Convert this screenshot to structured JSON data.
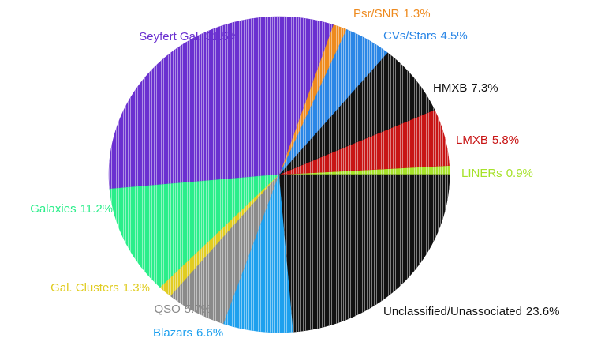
{
  "chart_data": {
    "type": "pie",
    "categories": [
      "LINERs",
      "LMXB",
      "HMXB",
      "CVs/Stars",
      "Psr/SNR",
      "Seyfert Gal.",
      "Galaxies",
      "Gal. Clusters",
      "QSO",
      "Blazars",
      "Unclassified/Unassociated"
    ],
    "values": [
      0.9,
      5.8,
      7.3,
      4.5,
      1.3,
      31.5,
      11.2,
      1.3,
      5.7,
      6.6,
      23.6
    ],
    "value_labels": [
      "0.9%",
      "5.8%",
      "7.3%",
      "4.5%",
      "1.3%",
      "31.5%",
      "11.2%",
      "1.3%",
      "5.7%",
      "6.6%",
      "23.6%"
    ],
    "colors": [
      "#a6e22a",
      "#c81414",
      "#111111",
      "#2a86e6",
      "#ee8a1e",
      "#6a30d0",
      "#2aee8a",
      "#e0cc20",
      "#8a8a8a",
      "#1ea0ee",
      "#111111"
    ]
  }
}
